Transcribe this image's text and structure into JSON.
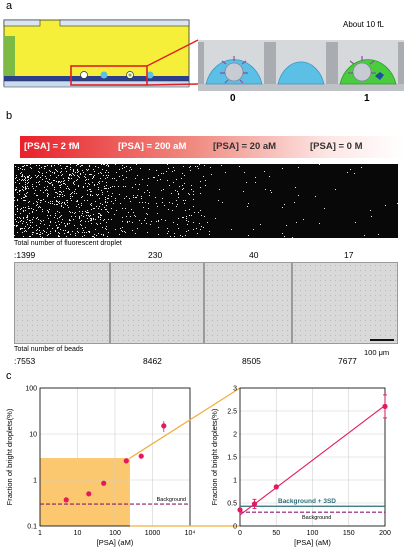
{
  "panels": {
    "a": "a",
    "b": "b",
    "c": "c"
  },
  "panel_a": {
    "volume_label": "About 10 fL",
    "droplet_labels": [
      "0",
      "1"
    ]
  },
  "panel_b": {
    "psa_labels": [
      "[PSA] = 2 fM",
      "[PSA] = 200 aM",
      "[PSA] = 20 aM",
      "[PSA] = 0 M"
    ],
    "fluorescent_title": "Total number of fluorescent droplet",
    "fluorescent_counts": [
      ":1399",
      "230",
      "40",
      "17"
    ],
    "fluorescent_dots": [
      1399,
      230,
      40,
      17
    ],
    "beads_title": "Total number of beads",
    "bead_counts": [
      ":7553",
      "8462",
      "8505",
      "7677"
    ],
    "scale_bar": "100 μm"
  },
  "chart_data": [
    {
      "type": "scatter",
      "scale": "log-log",
      "xlabel": "[PSA] (aM)",
      "ylabel": "Fraction of bright droplets(%)",
      "xlim": [
        1,
        10000
      ],
      "ylim": [
        0.1,
        100
      ],
      "x_ticks": [
        "1",
        "10",
        "100",
        "1000",
        "10⁴"
      ],
      "y_ticks": [
        "0.1",
        "1",
        "10",
        "100"
      ],
      "points": [
        {
          "x": 5,
          "y": 0.37
        },
        {
          "x": 20,
          "y": 0.5
        },
        {
          "x": 50,
          "y": 0.85
        },
        {
          "x": 200,
          "y": 2.6
        },
        {
          "x": 500,
          "y": 3.3
        },
        {
          "x": 2000,
          "y": 15,
          "err": 4
        }
      ],
      "background_level": 0.3,
      "background_label": "Background",
      "highlight_region": {
        "x": [
          1,
          250
        ],
        "y": [
          0.1,
          3
        ]
      },
      "highlight_color": "#fbc870",
      "point_color": "#e5195f",
      "background_color": "#8b1a6e"
    },
    {
      "type": "line",
      "xlabel": "[PSA] (aM)",
      "ylabel": "Fraction of bright droplets(%)",
      "xlim": [
        0,
        200
      ],
      "ylim": [
        0,
        3
      ],
      "x_ticks": [
        "0",
        "50",
        "100",
        "150",
        "200"
      ],
      "y_ticks": [
        "0",
        "0.5",
        "1",
        "1.5",
        "2",
        "2.5",
        "3"
      ],
      "points": [
        {
          "x": 0,
          "y": 0.35
        },
        {
          "x": 20,
          "y": 0.48,
          "err": 0.1
        },
        {
          "x": 50,
          "y": 0.85
        },
        {
          "x": 200,
          "y": 2.6,
          "err": 0.25
        }
      ],
      "fit": {
        "slope": 0.0119,
        "intercept": 0.24
      },
      "background_level": 0.3,
      "background_label": "Background",
      "background3sd_level": 0.43,
      "background3sd_label": "Background + 3SD",
      "background3sd_color": "#2e6e7a",
      "point_color": "#e5195f",
      "background_color": "#8b1a6e"
    }
  ]
}
